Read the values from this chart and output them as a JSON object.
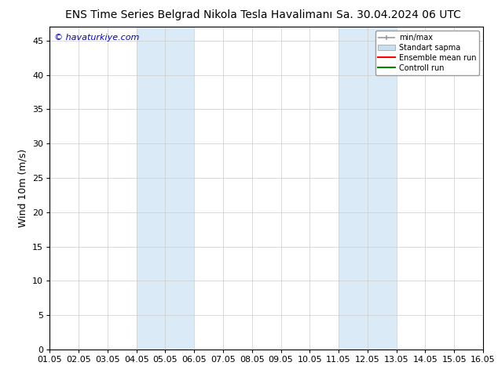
{
  "title": "ENS Time Series Belgrad Nikola Tesla Havalimanı",
  "title_right": "Sa. 30.04.2024 06 UTC",
  "ylabel": "Wind 10m (m/s)",
  "watermark": "© havaturkiye.com",
  "watermark_color": "#0000cc",
  "xtick_labels": [
    "01.05",
    "02.05",
    "03.05",
    "04.05",
    "05.05",
    "06.05",
    "07.05",
    "08.05",
    "09.05",
    "10.05",
    "11.05",
    "12.05",
    "13.05",
    "14.05",
    "15.05",
    "16.05"
  ],
  "ylim": [
    0,
    47
  ],
  "ytick_values": [
    0,
    5,
    10,
    15,
    20,
    25,
    30,
    35,
    40,
    45
  ],
  "background_color": "#ffffff",
  "plot_bg_color": "#ffffff",
  "shaded_regions": [
    {
      "xstart": 3,
      "xend": 5,
      "color": "#daeaf6"
    },
    {
      "xstart": 10,
      "xend": 12,
      "color": "#daeaf6"
    }
  ],
  "shade_right_edge": {
    "xstart": 15,
    "xend": 15.5,
    "color": "#daeaf6"
  },
  "legend_entries": [
    {
      "label": "min/max",
      "color": "#aaaaaa"
    },
    {
      "label": "Standart sapma",
      "color": "#c8dff0"
    },
    {
      "label": "Ensemble mean run",
      "color": "#ff0000"
    },
    {
      "label": "Controll run",
      "color": "#008800"
    }
  ],
  "tick_color": "#000000",
  "grid_color": "#cccccc",
  "title_fontsize": 10,
  "axis_fontsize": 8,
  "ylabel_fontsize": 9
}
